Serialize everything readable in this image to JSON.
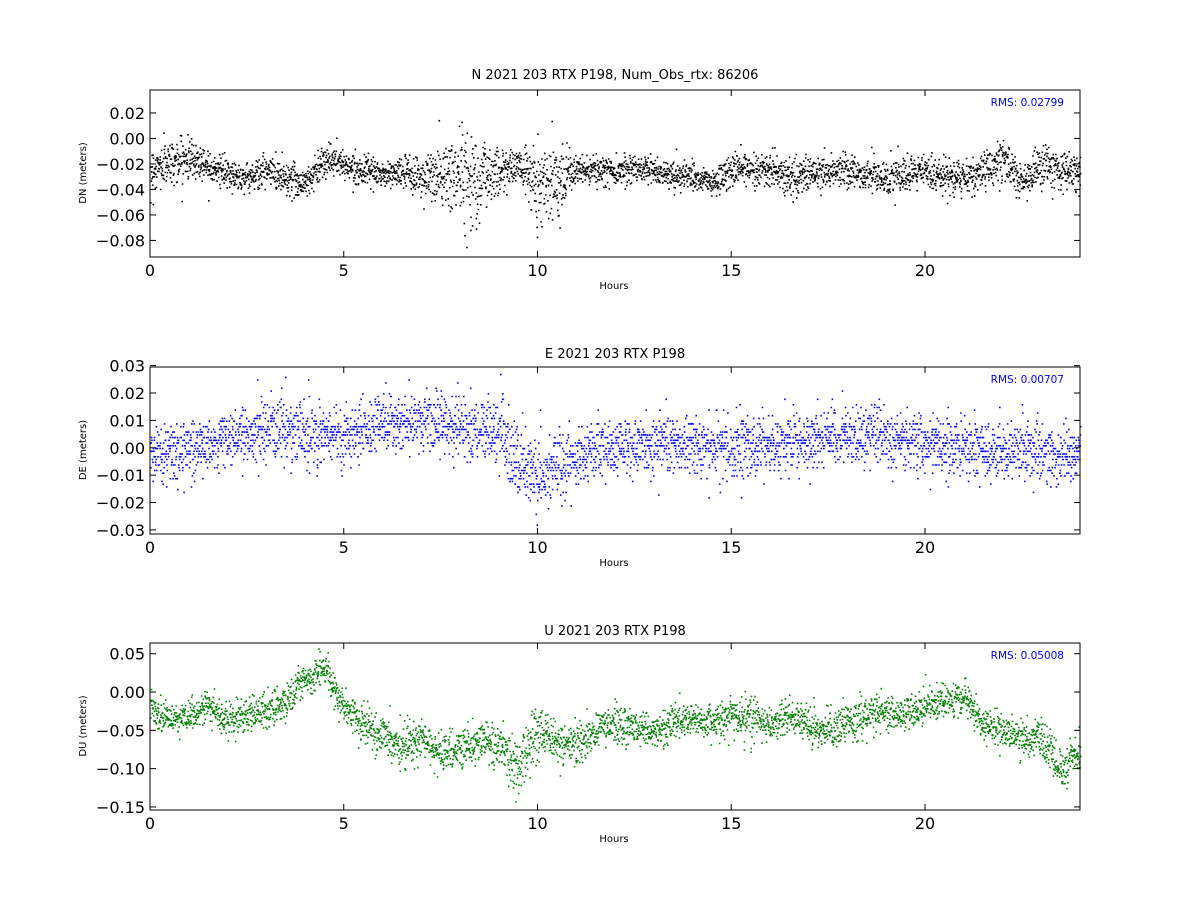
{
  "chart_data": [
    {
      "type": "scatter",
      "title": "N 2021 203 RTX  P198, Num_Obs_rtx: 86206",
      "xlabel": "Hours",
      "ylabel": "DN (meters)",
      "xlim": [
        0,
        24
      ],
      "ylim": [
        -0.093,
        0.038
      ],
      "xticks": [
        "0",
        "5",
        "10",
        "15",
        "20"
      ],
      "yticks": [
        "0.02",
        "0.00",
        "−0.02",
        "−0.04",
        "−0.06",
        "−0.08"
      ],
      "annotation": "RMS:  0.02799",
      "color": "#000000",
      "annotation_color": "#0000ff",
      "series": [
        {
          "x": [
            0,
            0.5,
            1,
            1.5,
            2,
            2.5,
            3,
            3.5,
            4,
            4.5,
            5,
            5.5,
            6,
            6.5,
            7,
            7.5,
            8,
            8.5,
            9,
            9.5,
            10,
            10.5,
            11,
            11.5,
            12,
            12.5,
            13,
            13.5,
            14,
            14.5,
            15,
            15.5,
            16,
            16.5,
            17,
            17.5,
            18,
            18.5,
            19,
            19.5,
            20,
            20.5,
            21,
            21.5,
            22,
            22.5,
            23,
            23.5,
            24
          ],
          "y": [
            -0.025,
            -0.018,
            -0.015,
            -0.02,
            -0.028,
            -0.03,
            -0.025,
            -0.03,
            -0.035,
            -0.015,
            -0.02,
            -0.025,
            -0.028,
            -0.026,
            -0.03,
            -0.03,
            -0.028,
            -0.03,
            -0.025,
            -0.02,
            -0.035,
            -0.03,
            -0.025,
            -0.025,
            -0.025,
            -0.022,
            -0.025,
            -0.028,
            -0.03,
            -0.035,
            -0.025,
            -0.022,
            -0.025,
            -0.03,
            -0.028,
            -0.025,
            -0.025,
            -0.028,
            -0.03,
            -0.03,
            -0.025,
            -0.03,
            -0.03,
            -0.025,
            -0.015,
            -0.035,
            -0.02,
            -0.025,
            -0.028
          ],
          "spread": [
            0.02,
            0.018,
            0.018,
            0.015,
            0.012,
            0.012,
            0.015,
            0.015,
            0.015,
            0.015,
            0.012,
            0.01,
            0.012,
            0.012,
            0.02,
            0.03,
            0.04,
            0.04,
            0.02,
            0.012,
            0.035,
            0.03,
            0.012,
            0.012,
            0.012,
            0.012,
            0.012,
            0.012,
            0.012,
            0.012,
            0.015,
            0.015,
            0.015,
            0.015,
            0.015,
            0.015,
            0.015,
            0.015,
            0.015,
            0.015,
            0.015,
            0.015,
            0.015,
            0.015,
            0.02,
            0.015,
            0.02,
            0.015,
            0.015
          ]
        }
      ]
    },
    {
      "type": "scatter",
      "title": "E 2021 203 RTX  P198",
      "xlabel": "Hours",
      "ylabel": "DE (meters)",
      "xlim": [
        0,
        24
      ],
      "ylim": [
        -0.0315,
        0.0295
      ],
      "xticks": [
        "0",
        "5",
        "10",
        "15",
        "20"
      ],
      "yticks": [
        "0.03",
        "0.02",
        "0.01",
        "0.00",
        "−0.01",
        "−0.02",
        "−0.03"
      ],
      "annotation": "RMS:  0.00707",
      "color": "#0000ff",
      "annotation_color": "#0000ff",
      "series": [
        {
          "x": [
            0,
            0.5,
            1,
            1.5,
            2,
            2.5,
            3,
            3.5,
            4,
            4.5,
            5,
            5.5,
            6,
            6.5,
            7,
            7.5,
            8,
            8.5,
            9,
            9.5,
            10,
            10.5,
            11,
            11.5,
            12,
            12.5,
            13,
            13.5,
            14,
            14.5,
            15,
            15.5,
            16,
            16.5,
            17,
            17.5,
            18,
            18.5,
            19,
            19.5,
            20,
            20.5,
            21,
            21.5,
            22,
            22.5,
            23,
            23.5,
            24
          ],
          "y": [
            -0.002,
            -0.001,
            0.0,
            0.002,
            0.003,
            0.005,
            0.008,
            0.008,
            0.006,
            0.005,
            0.004,
            0.008,
            0.01,
            0.009,
            0.01,
            0.009,
            0.007,
            0.006,
            0.007,
            -0.006,
            -0.01,
            -0.007,
            -0.004,
            0.0,
            0.0,
            0.001,
            0.001,
            0.002,
            0.002,
            0.001,
            0.0,
            0.001,
            0.001,
            0.002,
            0.003,
            0.004,
            0.005,
            0.005,
            0.004,
            0.003,
            0.002,
            0.001,
            0.001,
            0.0,
            -0.001,
            -0.001,
            -0.001,
            -0.003,
            -0.002
          ],
          "spread": [
            0.012,
            0.012,
            0.012,
            0.012,
            0.012,
            0.012,
            0.014,
            0.014,
            0.014,
            0.012,
            0.012,
            0.012,
            0.012,
            0.012,
            0.012,
            0.012,
            0.012,
            0.012,
            0.014,
            0.016,
            0.016,
            0.014,
            0.012,
            0.012,
            0.012,
            0.012,
            0.012,
            0.012,
            0.012,
            0.012,
            0.012,
            0.012,
            0.012,
            0.012,
            0.012,
            0.012,
            0.012,
            0.012,
            0.012,
            0.012,
            0.012,
            0.012,
            0.012,
            0.012,
            0.012,
            0.012,
            0.012,
            0.014,
            0.012
          ]
        }
      ]
    },
    {
      "type": "scatter",
      "title": "U 2021 203 RTX  P198",
      "xlabel": "Hours",
      "ylabel": "DU (meters)",
      "xlim": [
        0,
        24
      ],
      "ylim": [
        -0.154,
        0.064
      ],
      "xticks": [
        "0",
        "5",
        "10",
        "15",
        "20"
      ],
      "yticks": [
        "0.05",
        "0.00",
        "−0.05",
        "−0.10",
        "−0.15"
      ],
      "annotation": "RMS:  0.05008",
      "color": "#007f00",
      "annotation_color": "#0000ff",
      "series": [
        {
          "x": [
            0,
            0.5,
            1,
            1.5,
            2,
            2.5,
            3,
            3.5,
            4,
            4.5,
            5,
            5.5,
            6,
            6.5,
            7,
            7.5,
            8,
            8.5,
            9,
            9.5,
            10,
            10.5,
            11,
            11.5,
            12,
            12.5,
            13,
            13.5,
            14,
            14.5,
            15,
            15.5,
            16,
            16.5,
            17,
            17.5,
            18,
            18.5,
            19,
            19.5,
            20,
            20.5,
            21,
            21.5,
            22,
            22.5,
            23,
            23.5,
            24
          ],
          "y": [
            -0.02,
            -0.035,
            -0.03,
            -0.02,
            -0.04,
            -0.03,
            -0.02,
            -0.01,
            0.02,
            0.03,
            -0.02,
            -0.04,
            -0.06,
            -0.07,
            -0.06,
            -0.08,
            -0.07,
            -0.06,
            -0.07,
            -0.09,
            -0.05,
            -0.06,
            -0.07,
            -0.05,
            -0.04,
            -0.045,
            -0.05,
            -0.04,
            -0.035,
            -0.04,
            -0.03,
            -0.035,
            -0.04,
            -0.03,
            -0.04,
            -0.05,
            -0.04,
            -0.03,
            -0.025,
            -0.03,
            -0.015,
            -0.01,
            -0.005,
            -0.04,
            -0.05,
            -0.06,
            -0.06,
            -0.1,
            -0.08
          ],
          "spread": [
            0.02,
            0.02,
            0.02,
            0.025,
            0.025,
            0.025,
            0.025,
            0.025,
            0.025,
            0.025,
            0.025,
            0.03,
            0.03,
            0.03,
            0.03,
            0.03,
            0.03,
            0.03,
            0.03,
            0.035,
            0.035,
            0.03,
            0.03,
            0.025,
            0.025,
            0.025,
            0.025,
            0.025,
            0.025,
            0.025,
            0.03,
            0.03,
            0.025,
            0.025,
            0.03,
            0.03,
            0.03,
            0.03,
            0.025,
            0.025,
            0.025,
            0.025,
            0.025,
            0.025,
            0.025,
            0.025,
            0.03,
            0.03,
            0.03
          ]
        }
      ]
    }
  ]
}
